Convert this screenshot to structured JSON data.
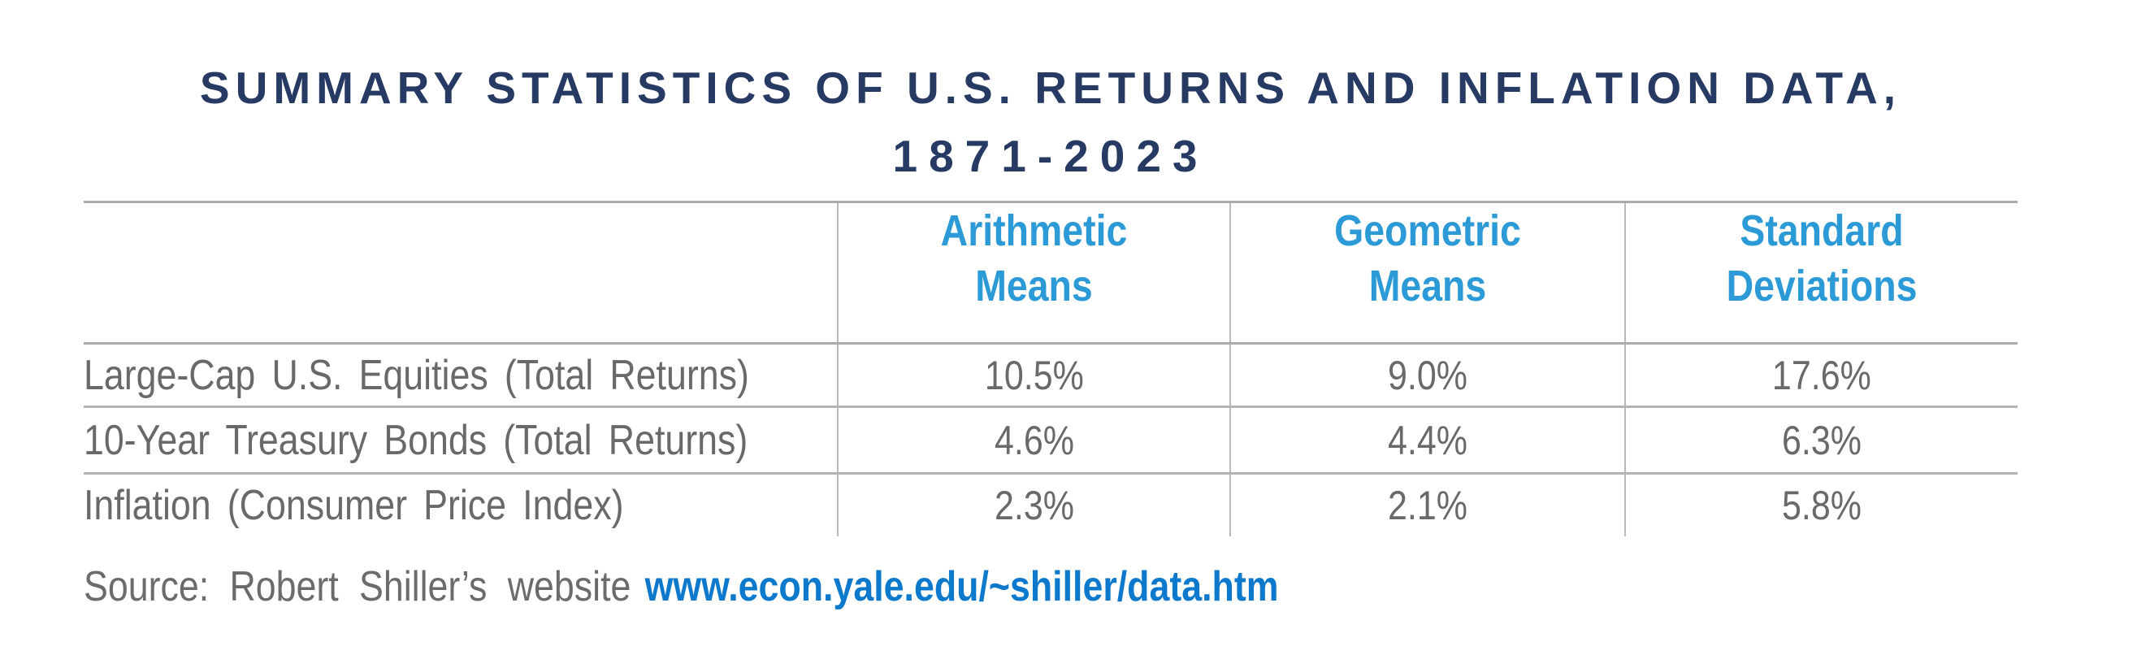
{
  "title": {
    "line1": "SUMMARY STATISTICS OF U.S. RETURNS AND INFLATION DATA,",
    "line2": "1871-2023"
  },
  "table": {
    "headers": [
      {
        "line1": "Arithmetic",
        "line2": "Means"
      },
      {
        "line1": "Geometric",
        "line2": "Means"
      },
      {
        "line1": "Standard",
        "line2": "Deviations"
      }
    ],
    "rows": [
      {
        "label": "Large-Cap U.S. Equities (Total Returns)",
        "arithmetic_mean": "10.5%",
        "geometric_mean": "9.0%",
        "standard_deviation": "17.6%"
      },
      {
        "label": "10-Year Treasury Bonds (Total Returns)",
        "arithmetic_mean": "4.6%",
        "geometric_mean": "4.4%",
        "standard_deviation": "6.3%"
      },
      {
        "label": "Inflation (Consumer Price Index)",
        "arithmetic_mean": "2.3%",
        "geometric_mean": "2.1%",
        "standard_deviation": "5.8%"
      }
    ]
  },
  "source": {
    "prefix": "Source: Robert Shiller’s website",
    "link": "www.econ.yale.edu/~shiller/data.htm"
  },
  "colors": {
    "title_navy": "#263a64",
    "header_blue": "#2b9ad6",
    "link_blue": "#0c79cc",
    "body_gray": "#696969",
    "border_gray": "#ababab"
  }
}
